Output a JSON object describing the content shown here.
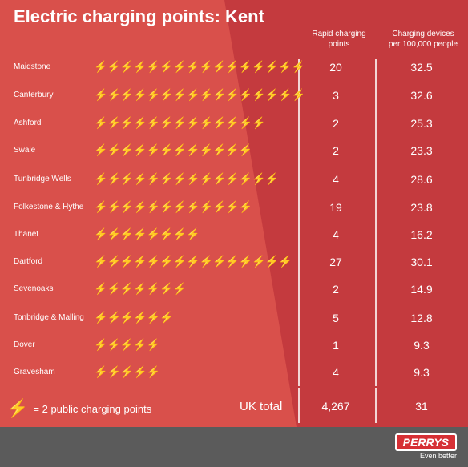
{
  "title": "Electric charging points: Kent",
  "headers": {
    "rapid": [
      "Rapid charging",
      "points"
    ],
    "devices": [
      "Charging devices",
      "per 100,000 people"
    ]
  },
  "legend": {
    "icon": "lightning-bolt-icon",
    "text": "= 2 public charging points"
  },
  "total": {
    "label": "UK total",
    "rapid": "4,267",
    "devices": "31"
  },
  "logo": {
    "name": "PERRYS",
    "tagline": "Even better"
  },
  "colors": {
    "background": "#c43a3e",
    "highlight": "#d9504b",
    "footer": "#5b5b5b",
    "text": "#ffffff"
  },
  "chart_data": {
    "type": "table",
    "pictograph_unit": "= 2 public charging points",
    "columns": [
      "Rapid charging points",
      "Charging devices per 100,000 people"
    ],
    "rows": [
      {
        "area": "Maidstone",
        "bolts": 16,
        "rapid": "20",
        "devices": "32.5"
      },
      {
        "area": "Canterbury",
        "bolts": 16,
        "rapid": "3",
        "devices": "32.6"
      },
      {
        "area": "Ashford",
        "bolts": 13,
        "rapid": "2",
        "devices": "25.3"
      },
      {
        "area": "Swale",
        "bolts": 12,
        "rapid": "2",
        "devices": "23.3"
      },
      {
        "area": "Tunbridge Wells",
        "bolts": 14,
        "rapid": "4",
        "devices": "28.6"
      },
      {
        "area": "Folkestone & Hythe",
        "bolts": 12,
        "rapid": "19",
        "devices": "23.8"
      },
      {
        "area": "Thanet",
        "bolts": 8,
        "rapid": "4",
        "devices": "16.2"
      },
      {
        "area": "Dartford",
        "bolts": 15,
        "rapid": "27",
        "devices": "30.1"
      },
      {
        "area": "Sevenoaks",
        "bolts": 7,
        "rapid": "2",
        "devices": "14.9"
      },
      {
        "area": "Tonbridge & Malling",
        "bolts": 6,
        "rapid": "5",
        "devices": "12.8"
      },
      {
        "area": "Dover",
        "bolts": 5,
        "rapid": "1",
        "devices": "9.3"
      },
      {
        "area": "Gravesham",
        "bolts": 5,
        "rapid": "4",
        "devices": "9.3"
      }
    ]
  }
}
